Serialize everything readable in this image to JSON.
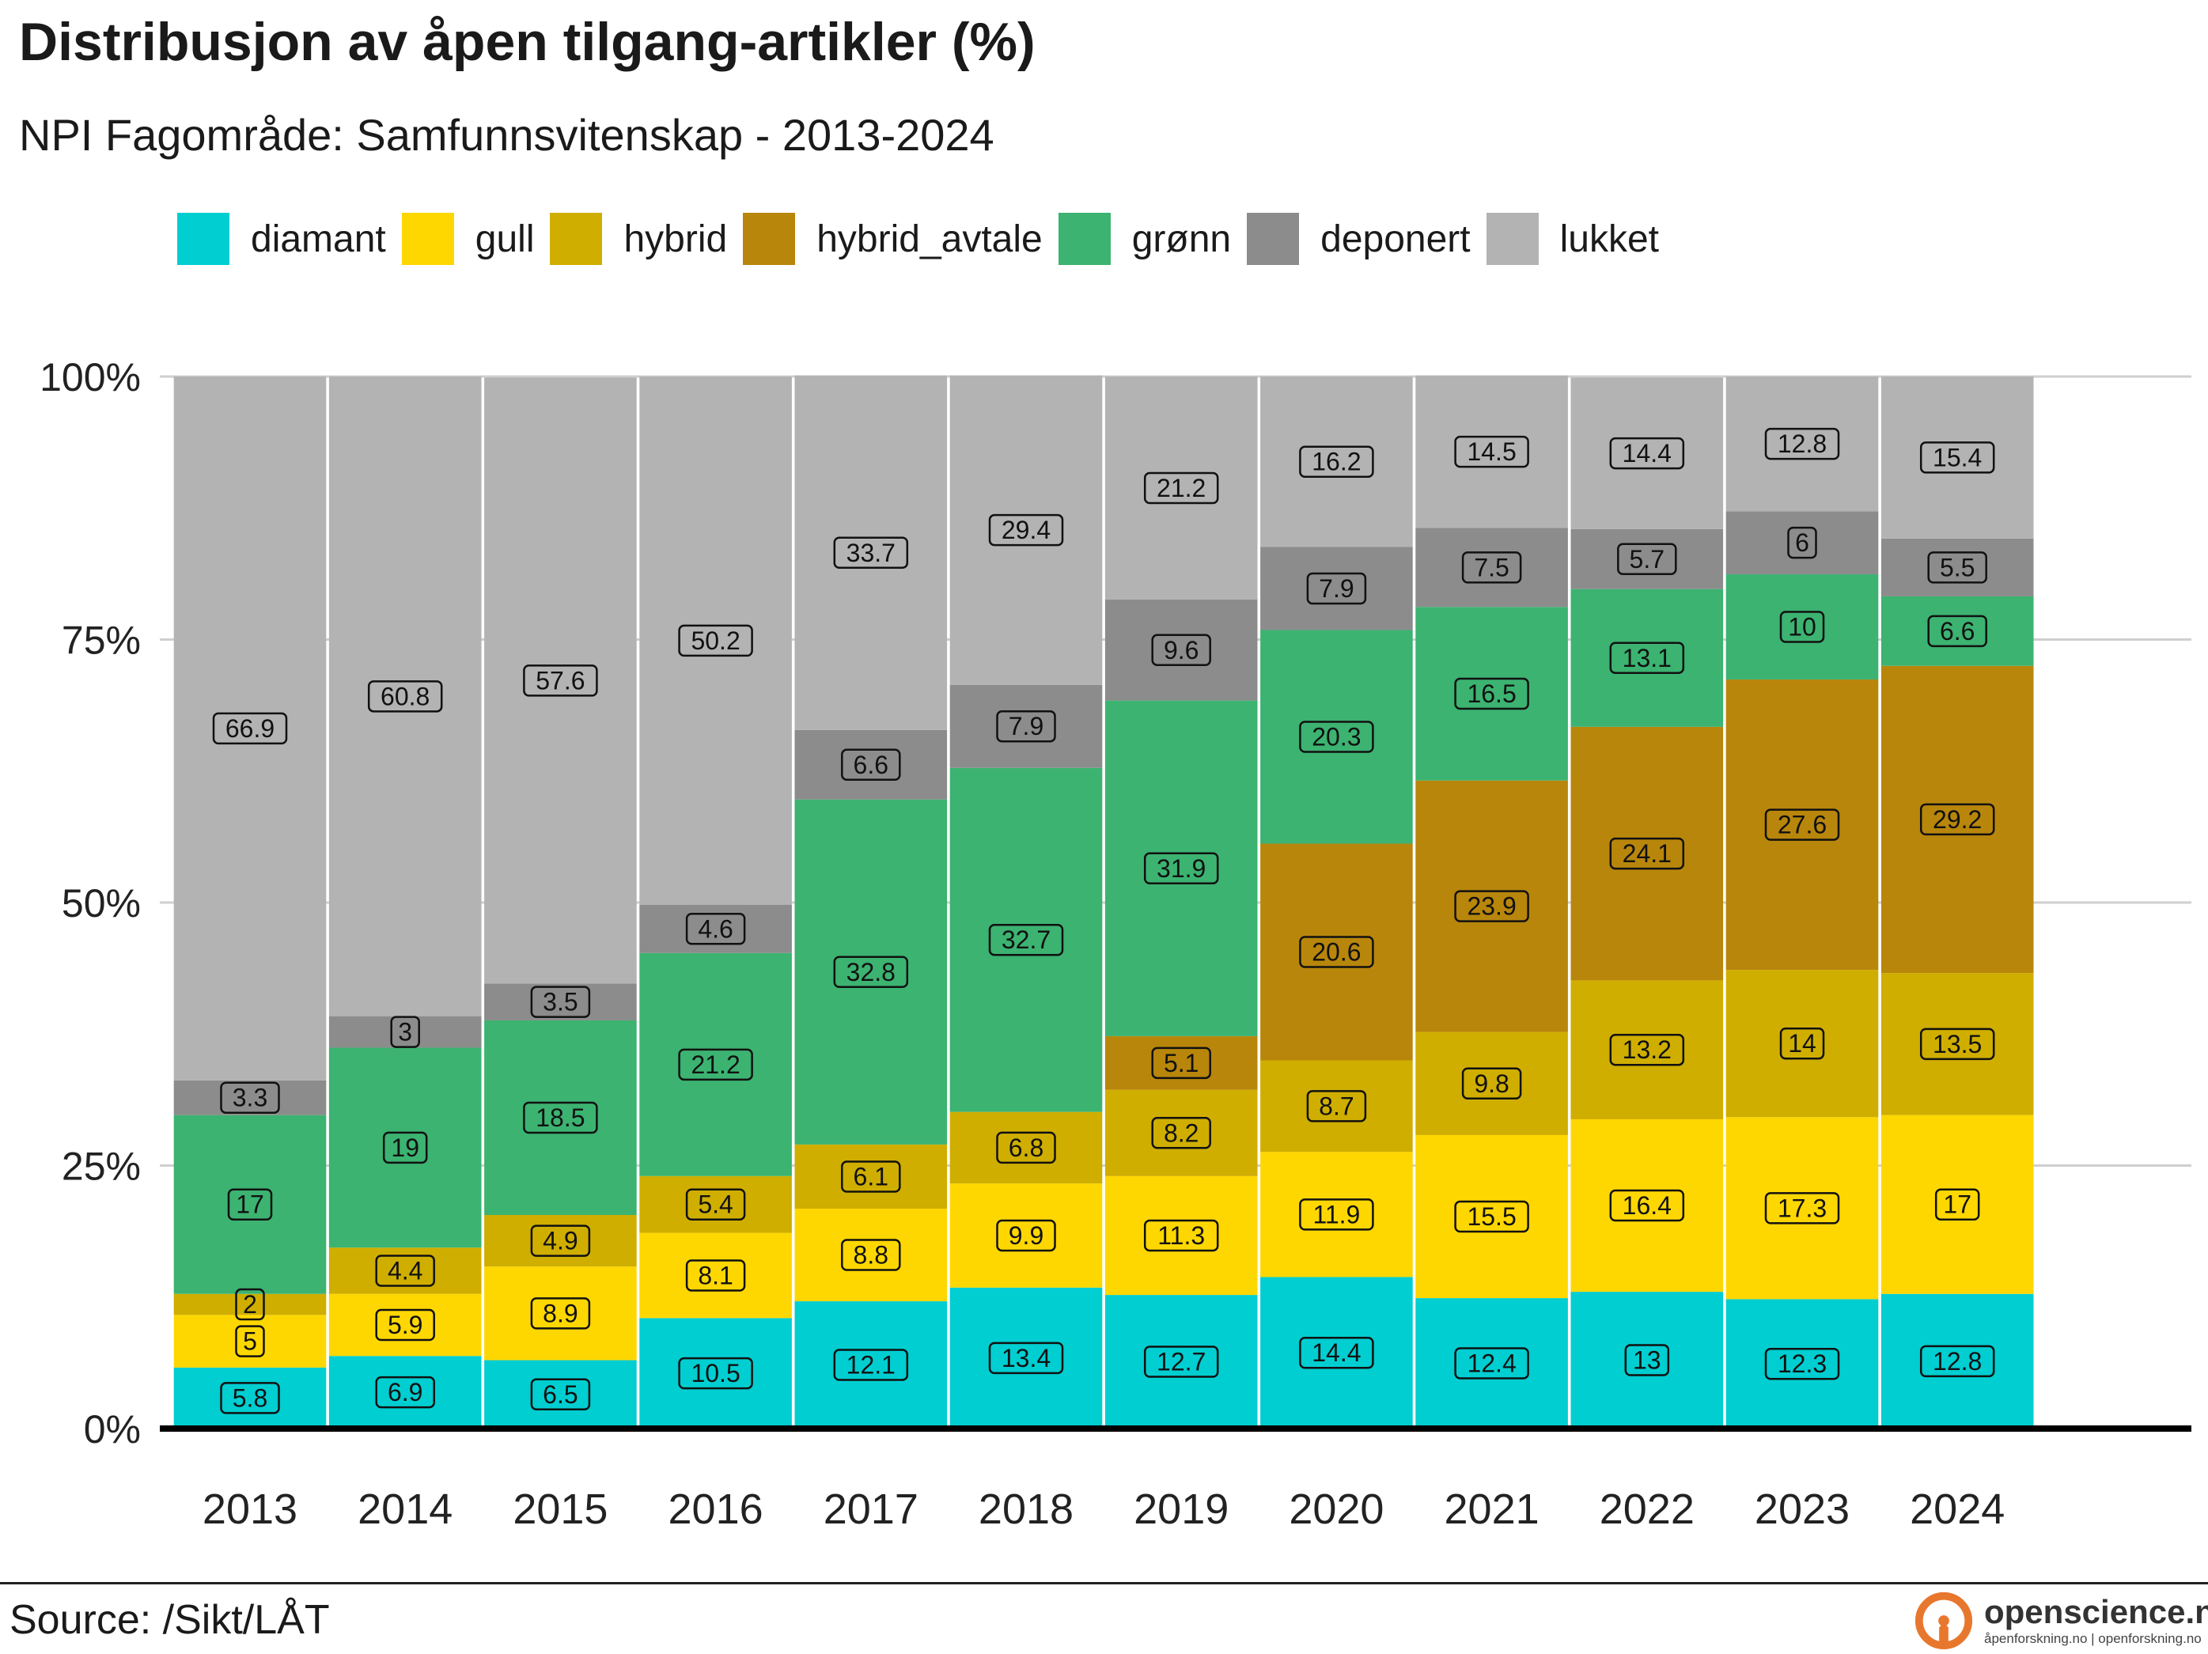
{
  "title": "Distribusjon av åpen tilgang-artikler (%)",
  "subtitle": "NPI Fagområde: Samfunnsvitenskap - 2013-2024",
  "source": "Source: /Sikt/LÅT",
  "brand": {
    "name": "openscience.no",
    "tagline": "åpenforskning.no | openforskning.no",
    "logo_icon": "open-access-lock-icon",
    "logo_color": "#E8772E"
  },
  "chart_data": {
    "type": "bar",
    "stacked": true,
    "categories": [
      "2013",
      "2014",
      "2015",
      "2016",
      "2017",
      "2018",
      "2019",
      "2020",
      "2021",
      "2022",
      "2023",
      "2024"
    ],
    "ylim": [
      0,
      100
    ],
    "y_ticks": [
      0,
      25,
      50,
      75,
      100
    ],
    "y_tick_labels": [
      "0%",
      "25%",
      "50%",
      "75%",
      "100%"
    ],
    "grid": true,
    "legend_position": "top",
    "series": [
      {
        "name": "diamant",
        "color": "#00CED1",
        "values": [
          5.8,
          6.9,
          6.5,
          10.5,
          12.1,
          13.4,
          12.7,
          14.4,
          12.4,
          13,
          12.3,
          12.8
        ]
      },
      {
        "name": "gull",
        "color": "#FFD700",
        "values": [
          5,
          5.9,
          8.9,
          8.1,
          8.8,
          9.9,
          11.3,
          11.9,
          15.5,
          16.4,
          17.3,
          17
        ]
      },
      {
        "name": "hybrid",
        "color": "#CFAE00",
        "values": [
          2,
          4.4,
          4.9,
          5.4,
          6.1,
          6.8,
          8.2,
          8.7,
          9.8,
          13.2,
          14,
          13.5
        ]
      },
      {
        "name": "hybrid_avtale",
        "color": "#B8860B",
        "values": [
          null,
          null,
          null,
          null,
          null,
          null,
          5.1,
          20.6,
          23.9,
          24.1,
          27.6,
          29.2
        ]
      },
      {
        "name": "grønn",
        "color": "#3CB371",
        "values": [
          17,
          19,
          18.5,
          21.2,
          32.8,
          32.7,
          31.9,
          20.3,
          16.5,
          13.1,
          10,
          6.6
        ]
      },
      {
        "name": "deponert",
        "color": "#8C8C8C",
        "values": [
          3.3,
          3,
          3.5,
          4.6,
          6.6,
          7.9,
          9.6,
          7.9,
          7.5,
          5.7,
          6,
          5.5
        ]
      },
      {
        "name": "lukket",
        "color": "#B3B3B3",
        "values": [
          66.9,
          60.8,
          57.6,
          50.2,
          33.7,
          29.4,
          21.2,
          16.2,
          14.5,
          14.4,
          12.8,
          15.4
        ]
      }
    ]
  }
}
